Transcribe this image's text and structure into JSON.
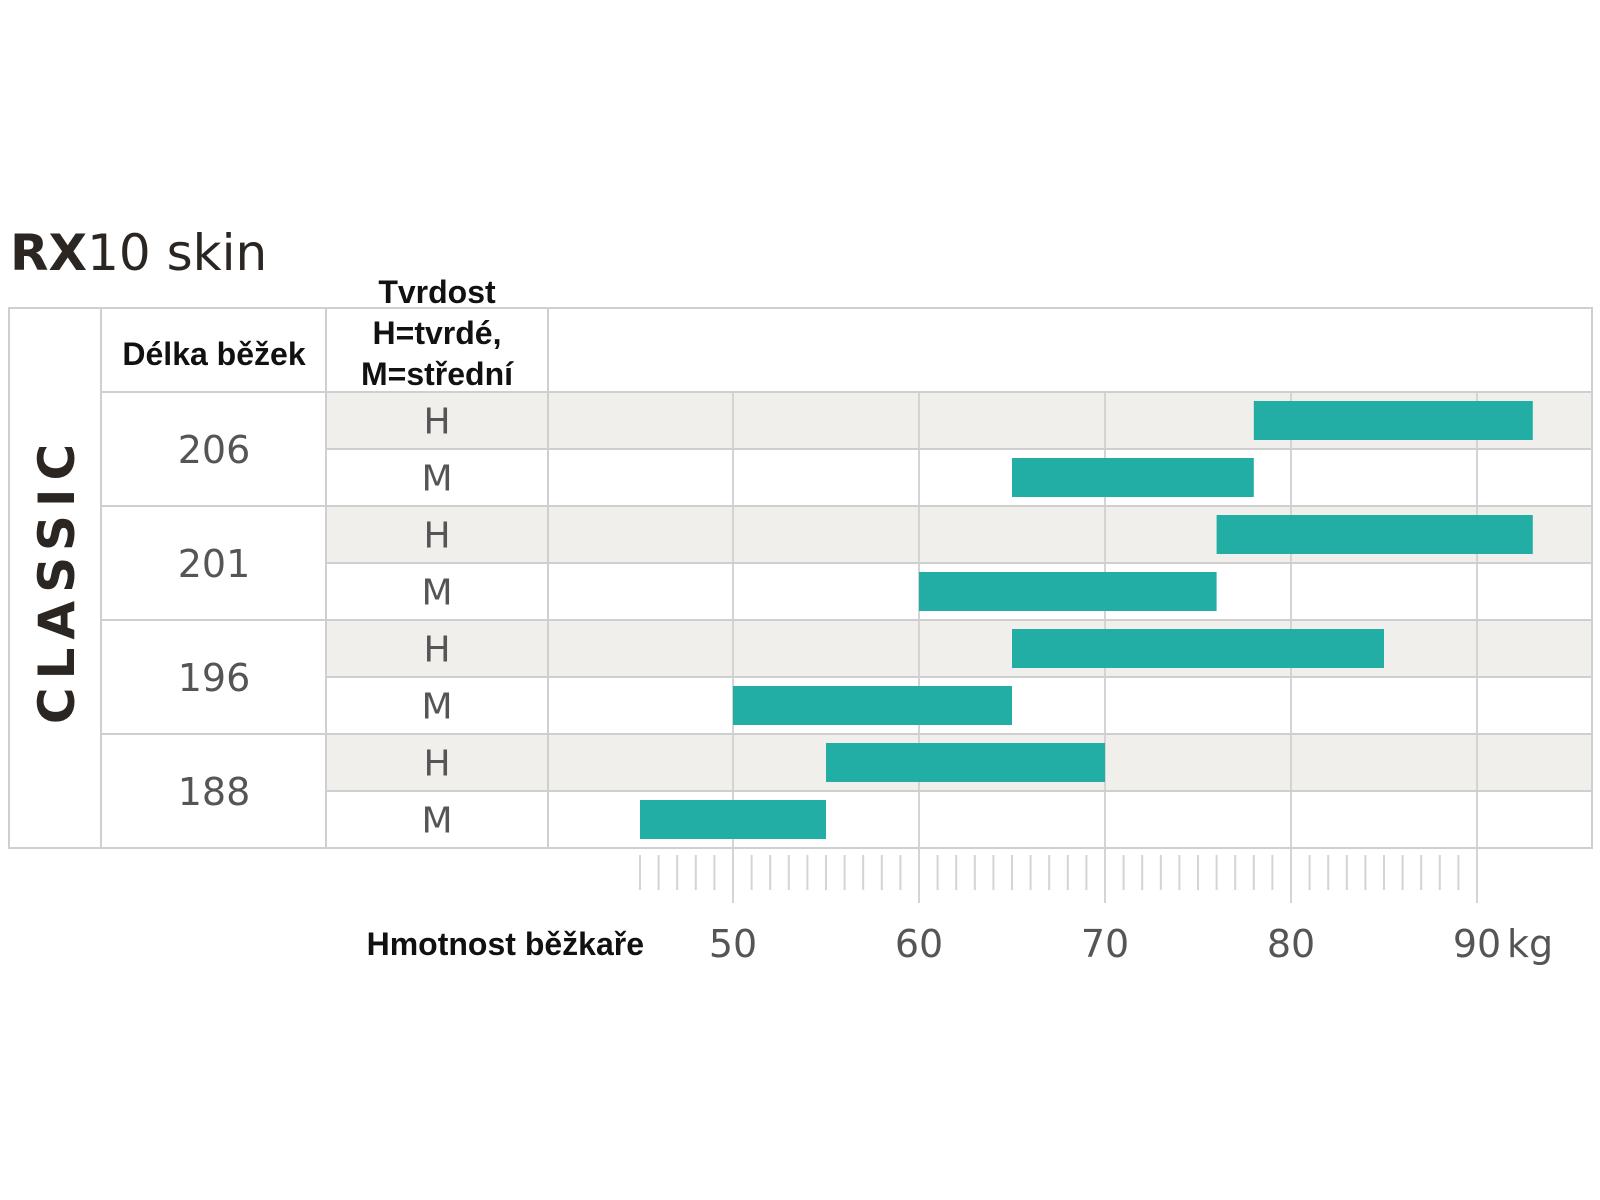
{
  "chart_data": {
    "type": "bar",
    "title_bold": "RX",
    "title_light": "10  skin",
    "category_label": "CLASSIC",
    "column_headers": {
      "length": "Délka běžek",
      "hardness": [
        "Tvrdost",
        "H=tvrdé,",
        "M=střední"
      ]
    },
    "xlabel": "Hmotnost běžkaře",
    "xunit": "kg",
    "xlim": [
      40,
      96
    ],
    "xticks": [
      50,
      60,
      70,
      80,
      90
    ],
    "minor_tick_step": 1,
    "minor_tick_range": [
      45,
      90
    ],
    "grid": "vertical",
    "bar_color": "#23aea5",
    "band_color": "#f1efeb",
    "groups": [
      {
        "length": "206",
        "rows": [
          {
            "hardness": "H",
            "range": [
              78,
              93
            ]
          },
          {
            "hardness": "M",
            "range": [
              65,
              78
            ]
          }
        ]
      },
      {
        "length": "201",
        "rows": [
          {
            "hardness": "H",
            "range": [
              76,
              93
            ]
          },
          {
            "hardness": "M",
            "range": [
              60,
              76
            ]
          }
        ]
      },
      {
        "length": "196",
        "rows": [
          {
            "hardness": "H",
            "range": [
              65,
              85
            ]
          },
          {
            "hardness": "M",
            "range": [
              50,
              65
            ]
          }
        ]
      },
      {
        "length": "188",
        "rows": [
          {
            "hardness": "H",
            "range": [
              55,
              70
            ]
          },
          {
            "hardness": "M",
            "range": [
              45,
              55
            ]
          }
        ]
      }
    ]
  }
}
